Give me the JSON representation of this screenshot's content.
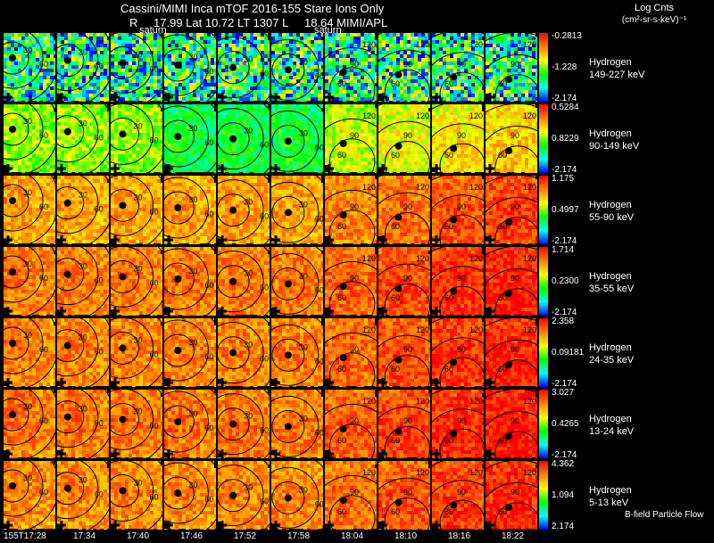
{
  "header": {
    "title_line": "Cassini/MIMI Inca mTOF  2016-155   Stare    Ions Only",
    "info_parts": [
      "R",
      "17.99 Lat 10.72 LT 1307 L",
      "18.64  MIMI/APL"
    ],
    "saturn_labels": [
      "saturn",
      "saturn"
    ],
    "units_line1": "Log Cnts",
    "units_line2": "(cm²-sr-s-keV)⁻¹"
  },
  "palette": {
    "blue": "#0000ff",
    "cyan": "#00ffff",
    "green": "#00ff00",
    "yellow": "#ffff00",
    "orange": "#ff8000",
    "red": "#ff0000",
    "background": "#000000"
  },
  "chart_data": {
    "type": "heatmap",
    "species": "Hydrogen",
    "time_ticks": [
      "155T17:28",
      "17:34",
      "17:40",
      "17:46",
      "17:52",
      "17:58",
      "18:04",
      "18:10",
      "18:16",
      "18:22"
    ],
    "contour_labels": [
      "30",
      "60",
      "90",
      "120"
    ],
    "rows": [
      {
        "label": "Hydrogen",
        "energy": "149-227 keV",
        "cmax": "-0.2813",
        "cmid": "-1.228",
        "cmin": "-2.174",
        "level": 0.35
      },
      {
        "label": "Hydrogen",
        "energy": "90-149 keV",
        "cmax": "0.5284",
        "cmid": "0.8229",
        "cmin": "-2.174",
        "level": 0.55
      },
      {
        "label": "Hydrogen",
        "energy": "55-90 keV",
        "cmax": "1.175",
        "cmid": "0.4997",
        "cmin": "-2.174",
        "level": 0.78
      },
      {
        "label": "Hydrogen",
        "energy": "35-55 keV",
        "cmax": "1.714",
        "cmid": "0.2300",
        "cmin": "-2.174",
        "level": 0.84
      },
      {
        "label": "Hydrogen",
        "energy": "24-35 keV",
        "cmax": "2.358",
        "cmid": "0.09181",
        "cmin": "-2.174",
        "level": 0.83
      },
      {
        "label": "Hydrogen",
        "energy": "13-24 keV",
        "cmax": "3.027",
        "cmid": "0.4265",
        "cmin": "-2.174",
        "level": 0.85
      },
      {
        "label": "Hydrogen",
        "energy": "5-13 keV",
        "cmax": "4.362",
        "cmid": "1.094",
        "cmin": "2.174",
        "level": 0.82
      }
    ],
    "footer_note": "B-field Particle Flow"
  }
}
